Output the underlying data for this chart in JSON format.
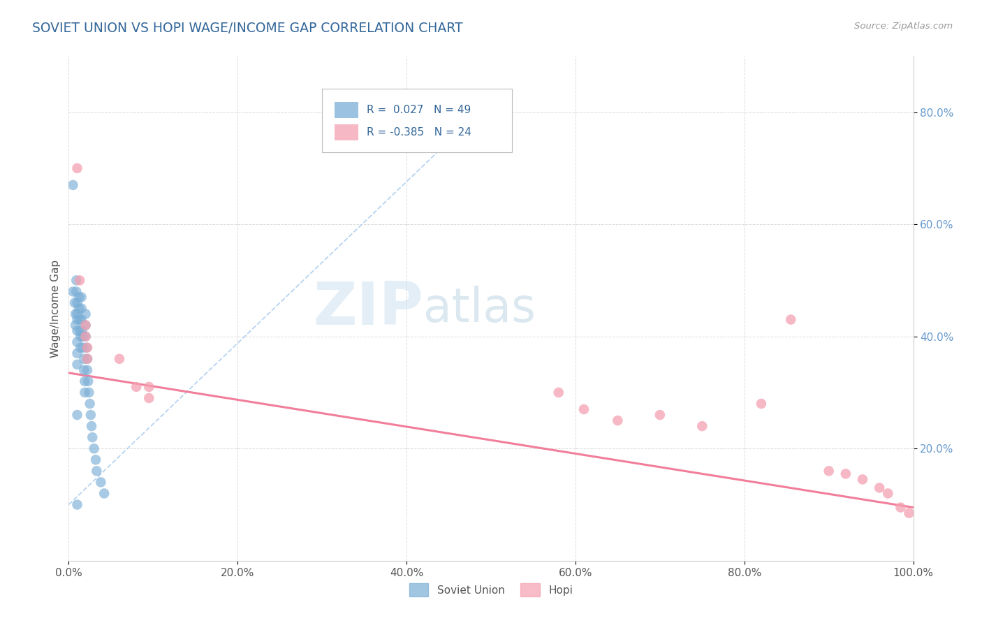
{
  "title": "SOVIET UNION VS HOPI WAGE/INCOME GAP CORRELATION CHART",
  "source": "Source: ZipAtlas.com",
  "ylabel": "Wage/Income Gap",
  "xlim": [
    0.0,
    1.0
  ],
  "ylim": [
    0.0,
    0.9
  ],
  "xtick_labels": [
    "0.0%",
    "20.0%",
    "40.0%",
    "60.0%",
    "80.0%",
    "100.0%"
  ],
  "xtick_vals": [
    0.0,
    0.2,
    0.4,
    0.6,
    0.8,
    1.0
  ],
  "ytick_labels": [
    "20.0%",
    "40.0%",
    "60.0%",
    "80.0%"
  ],
  "ytick_vals": [
    0.2,
    0.4,
    0.6,
    0.8
  ],
  "soviet_R": "0.027",
  "soviet_N": "49",
  "hopi_R": "-0.385",
  "hopi_N": "24",
  "soviet_color": "#7aaed6",
  "hopi_color": "#f4a0b0",
  "soviet_line_color": "#aaccee",
  "hopi_line_color": "#f07090",
  "background_color": "#ffffff",
  "grid_color": "#cccccc",
  "title_color": "#336699",
  "watermark_zip": "ZIP",
  "watermark_atlas": "atlas",
  "soviet_x": [
    0.005,
    0.005,
    0.007,
    0.008,
    0.008,
    0.009,
    0.009,
    0.01,
    0.01,
    0.01,
    0.01,
    0.01,
    0.01,
    0.01,
    0.012,
    0.012,
    0.013,
    0.013,
    0.014,
    0.014,
    0.015,
    0.015,
    0.015,
    0.016,
    0.017,
    0.017,
    0.018,
    0.018,
    0.019,
    0.019,
    0.02,
    0.02,
    0.02,
    0.021,
    0.022,
    0.022,
    0.023,
    0.024,
    0.025,
    0.026,
    0.027,
    0.028,
    0.03,
    0.032,
    0.033,
    0.038,
    0.042,
    0.01,
    0.01
  ],
  "soviet_y": [
    0.67,
    0.48,
    0.46,
    0.44,
    0.42,
    0.5,
    0.48,
    0.46,
    0.44,
    0.43,
    0.41,
    0.39,
    0.37,
    0.35,
    0.47,
    0.45,
    0.43,
    0.41,
    0.4,
    0.38,
    0.47,
    0.45,
    0.43,
    0.41,
    0.4,
    0.38,
    0.36,
    0.34,
    0.32,
    0.3,
    0.44,
    0.42,
    0.4,
    0.38,
    0.36,
    0.34,
    0.32,
    0.3,
    0.28,
    0.26,
    0.24,
    0.22,
    0.2,
    0.18,
    0.16,
    0.14,
    0.12,
    0.26,
    0.1
  ],
  "hopi_x": [
    0.01,
    0.013,
    0.02,
    0.02,
    0.022,
    0.022,
    0.06,
    0.08,
    0.095,
    0.095,
    0.58,
    0.61,
    0.65,
    0.7,
    0.75,
    0.82,
    0.855,
    0.9,
    0.92,
    0.94,
    0.96,
    0.97,
    0.985,
    0.995
  ],
  "hopi_y": [
    0.7,
    0.5,
    0.42,
    0.4,
    0.38,
    0.36,
    0.36,
    0.31,
    0.31,
    0.29,
    0.3,
    0.27,
    0.25,
    0.26,
    0.24,
    0.28,
    0.43,
    0.16,
    0.155,
    0.145,
    0.13,
    0.12,
    0.095,
    0.085
  ]
}
